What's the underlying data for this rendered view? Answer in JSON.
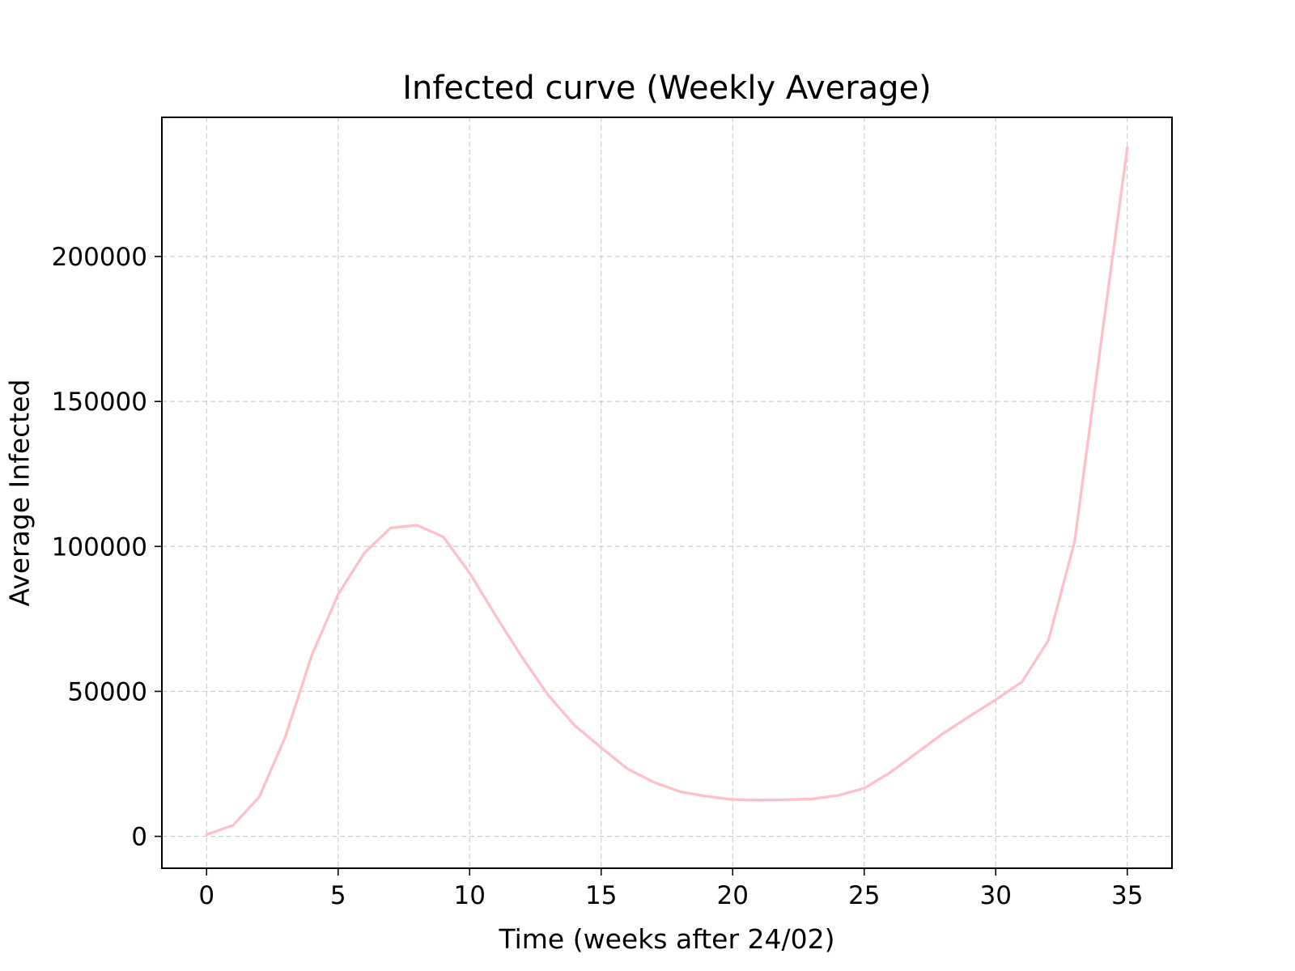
{
  "chart_data": {
    "type": "line",
    "title": "Infected curve (Weekly Average)",
    "xlabel": "Time (weeks after 24/02)",
    "ylabel": "Average Infected",
    "xlim": [
      -1.7,
      36.7
    ],
    "ylim": [
      -11000,
      248000
    ],
    "xticks": [
      0,
      5,
      10,
      15,
      20,
      25,
      30,
      35
    ],
    "yticks": [
      0,
      50000,
      100000,
      150000,
      200000
    ],
    "grid": true,
    "legend": "none",
    "series": [
      {
        "color": "#ffc0cb",
        "x": [
          0,
          1,
          2,
          3,
          4,
          5,
          6,
          7,
          8,
          9,
          10,
          11,
          12,
          13,
          14,
          15,
          16,
          17,
          18,
          19,
          20,
          21,
          22,
          23,
          24,
          25,
          26,
          27,
          28,
          29,
          30,
          31,
          32,
          33,
          34,
          35
        ],
        "y": [
          600,
          3800,
          13600,
          34500,
          62500,
          83500,
          97800,
          106400,
          107300,
          103300,
          90800,
          76000,
          61700,
          48500,
          38200,
          30600,
          23300,
          18700,
          15400,
          13800,
          12700,
          12500,
          12600,
          12900,
          14100,
          16600,
          22100,
          28800,
          35500,
          41400,
          47100,
          53300,
          67600,
          101700,
          170000,
          237500
        ]
      }
    ]
  }
}
